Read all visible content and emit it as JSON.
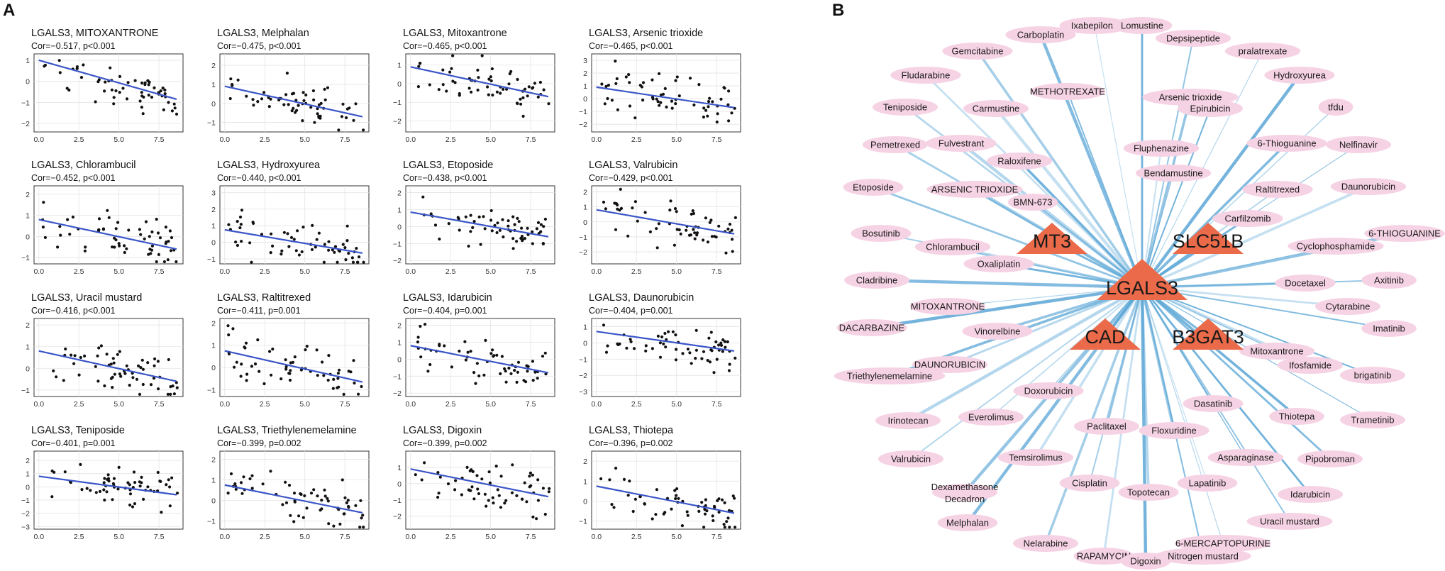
{
  "figure": {
    "panel_a_label": "A",
    "panel_b_label": "B"
  },
  "chart_data": [
    {
      "type": "scatter",
      "panel": "A",
      "xticks": [
        0.0,
        2.5,
        5.0,
        7.5
      ],
      "xlim": [
        -0.3,
        9.0
      ],
      "plots": [
        {
          "title": "LGALS3, MITOXANTRONE",
          "corr": "Cor=−0.517, p<0.001",
          "ylim": [
            -2.4,
            1.3
          ],
          "yticks": [
            1,
            0,
            -1,
            -2
          ],
          "fit": [
            1.0,
            -0.85
          ],
          "n": 60,
          "seed": 11
        },
        {
          "title": "LGALS3, Melphalan",
          "corr": "Cor=−0.475, p<0.001",
          "ylim": [
            -1.5,
            2.6
          ],
          "yticks": [
            2,
            1,
            0,
            -1
          ],
          "fit": [
            0.9,
            -0.7
          ],
          "n": 60,
          "seed": 12
        },
        {
          "title": "LGALS3, Mitoxantrone",
          "corr": "Cor=−0.465, p<0.001",
          "ylim": [
            -2.6,
            1.6
          ],
          "yticks": [
            1,
            0,
            -1,
            -2
          ],
          "fit": [
            0.9,
            -0.7
          ],
          "n": 60,
          "seed": 13
        },
        {
          "title": "LGALS3, Arsenic trioxide",
          "corr": "Cor=−0.465, p<0.001",
          "ylim": [
            -2.6,
            3.5
          ],
          "yticks": [
            3,
            2,
            1,
            0,
            -1,
            -2
          ],
          "fit": [
            0.9,
            -0.7
          ],
          "n": 60,
          "seed": 14
        },
        {
          "title": "LGALS3, Chlorambucil",
          "corr": "Cor=−0.452, p<0.001",
          "ylim": [
            -1.3,
            2.4
          ],
          "yticks": [
            2,
            1,
            0,
            -1
          ],
          "fit": [
            0.8,
            -0.6
          ],
          "n": 60,
          "seed": 21
        },
        {
          "title": "LGALS3, Hydroxyurea",
          "corr": "Cor=−0.440, p<0.001",
          "ylim": [
            -1.3,
            3.4
          ],
          "yticks": [
            3,
            2,
            1,
            0,
            -1
          ],
          "fit": [
            0.75,
            -0.65
          ],
          "n": 60,
          "seed": 22
        },
        {
          "title": "LGALS3, Etoposide",
          "corr": "Cor=−0.438, p<0.001",
          "ylim": [
            -2.2,
            2.4
          ],
          "yticks": [
            2,
            1,
            0,
            -1,
            -2
          ],
          "fit": [
            0.85,
            -0.6
          ],
          "n": 60,
          "seed": 23
        },
        {
          "title": "LGALS3, Valrubicin",
          "corr": "Cor=−0.429, p<0.001",
          "ylim": [
            -2.8,
            2.4
          ],
          "yticks": [
            2,
            1,
            0,
            -1,
            -2
          ],
          "fit": [
            0.8,
            -0.8
          ],
          "n": 60,
          "seed": 24
        },
        {
          "title": "LGALS3, Uracil mustard",
          "corr": "Cor=−0.416, p<0.001",
          "ylim": [
            -1.3,
            2.3
          ],
          "yticks": [
            2,
            1,
            0,
            -1
          ],
          "fit": [
            0.8,
            -0.6
          ],
          "n": 60,
          "seed": 31
        },
        {
          "title": "LGALS3, Raltitrexed",
          "corr": "Cor=−0.411, p=0.001",
          "ylim": [
            -1.3,
            2.2
          ],
          "yticks": [
            2,
            1,
            0,
            -1
          ],
          "fit": [
            0.75,
            -0.65
          ],
          "n": 60,
          "seed": 32
        },
        {
          "title": "LGALS3, Idarubicin",
          "corr": "Cor=−0.404, p=0.001",
          "ylim": [
            -2.2,
            2.4
          ],
          "yticks": [
            2,
            1,
            0,
            -1,
            -2
          ],
          "fit": [
            0.8,
            -0.8
          ],
          "n": 60,
          "seed": 33
        },
        {
          "title": "LGALS3, Daunorubicin",
          "corr": "Cor=−0.404, p=0.001",
          "ylim": [
            -3.3,
            1.5
          ],
          "yticks": [
            1,
            0,
            -1,
            -2,
            -3
          ],
          "fit": [
            0.7,
            -0.5
          ],
          "n": 60,
          "seed": 34
        },
        {
          "title": "LGALS3, Teniposide",
          "corr": "Cor=−0.401, p=0.001",
          "ylim": [
            -3.2,
            2.7
          ],
          "yticks": [
            2,
            1,
            0,
            -1,
            -2,
            -3
          ],
          "fit": [
            0.8,
            -0.6
          ],
          "n": 60,
          "seed": 41
        },
        {
          "title": "LGALS3, Triethylenemelamine",
          "corr": "Cor=−0.399, p=0.002",
          "ylim": [
            -1.4,
            2.4
          ],
          "yticks": [
            2,
            1,
            0,
            -1
          ],
          "fit": [
            0.75,
            -0.6
          ],
          "n": 60,
          "seed": 42
        },
        {
          "title": "LGALS3, Digoxin",
          "corr": "Cor=−0.399, p=0.002",
          "ylim": [
            -2.8,
            2.0
          ],
          "yticks": [
            1,
            0,
            -1,
            -2
          ],
          "fit": [
            0.9,
            -0.8
          ],
          "n": 60,
          "seed": 43
        },
        {
          "title": "LGALS3, Thiotepa",
          "corr": "Cor=−0.396, p=0.002",
          "ylim": [
            -1.4,
            2.5
          ],
          "yticks": [
            2,
            1,
            0,
            -1
          ],
          "fit": [
            0.75,
            -0.6
          ],
          "n": 60,
          "seed": 44
        }
      ]
    },
    {
      "type": "network",
      "panel": "B",
      "hub": "LGALS3",
      "genes": [
        "MT3",
        "SLC51B",
        "CAD",
        "B3GAT3"
      ],
      "drugs": [
        "Ixabepilone",
        "Lomustine",
        "Carboplatin",
        "Depsipeptide",
        "Gemcitabine",
        "pralatrexate",
        "Fludarabine",
        "Hydroxyurea",
        "METHOTREXATE",
        "Arsenic trioxide",
        "tfdu",
        "Teniposide",
        "Carmustine",
        "Epirubicin",
        "6-Thioguanine",
        "Nelfinavir",
        "Pemetrexed",
        "Fulvestrant",
        "Fluphenazine",
        "Raloxifene",
        "Bendamustine",
        "Etoposide",
        "ARSENIC TRIOXIDE",
        "Raltitrexed",
        "Daunorubicin",
        "BMN-673",
        "Carfilzomib",
        "6-THIOGUANINE",
        "Bosutinib",
        "Chlorambucil",
        "Cyclophosphamide",
        "Oxaliplatin",
        "Cladribine",
        "Axitinib",
        "Docetaxel",
        "MITOXANTRONE",
        "Cytarabine",
        "DACARBAZINE",
        "Imatinib",
        "Vinorelbine",
        "Mitoxantrone",
        "DAUNORUBICIN",
        "Ifosfamide",
        "brigatinib",
        "Triethylenemelamine",
        "Doxorubicin",
        "Dasatinib",
        "Irinotecan",
        "Everolimus",
        "Thiotepa",
        "Trametinib",
        "Paclitaxel",
        "Floxuridine",
        "Valrubicin",
        "Temsirolimus",
        "Asparaginase",
        "Pipobroman",
        "Dexamethasone Decadron",
        "Cisplatin",
        "Topotecan",
        "Lapatinib",
        "Idarubicin",
        "Melphalan",
        "Uracil mustard",
        "Nelarabine",
        "6-MERCAPTOPURINE",
        "RAPAMYCIN",
        "Digoxin",
        "Nitrogen mustard"
      ]
    }
  ],
  "colors": {
    "fit_line": "#3a55c8",
    "edge": "#5aa6d6",
    "drug_node": "#f6d3e4",
    "gene_node": "#ea6a4a"
  }
}
